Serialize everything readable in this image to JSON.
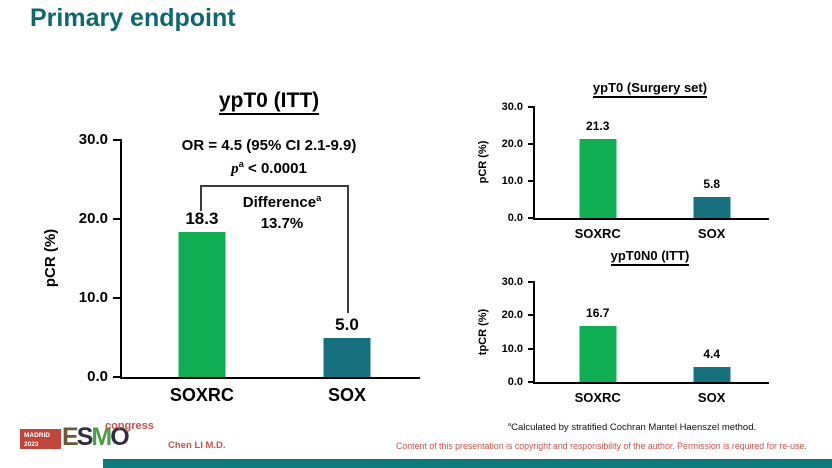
{
  "slide": {
    "title": "Primary endpoint",
    "credit": "Chen LI M.D.",
    "copyright": "Content of this presentation is copyright and responsibility of the author. Permission is required for re-use.",
    "footnote_sup": "a",
    "footnote_text": "Calculated by stratified Cochran Mantel Haenszel method."
  },
  "logo": {
    "city": "MADRID",
    "year": "2023",
    "letters": [
      "E",
      "S",
      "M",
      "O"
    ],
    "event": "congress"
  },
  "annotation": {
    "or_text": "OR = 4.5 (95% CI 2.1-9.9)",
    "p_italic": "p",
    "p_sup": "a",
    "p_rest": " < 0.0001",
    "difference_label": "Difference",
    "difference_sup": "a",
    "difference_value": "13.7%"
  },
  "colors": {
    "title_teal": "#0E696E",
    "bar_green": "#0FAE53",
    "bar_teal": "#17707E",
    "red_text": "#C4554D",
    "bottom_bar": "#0D7B7E"
  },
  "chart_data": [
    {
      "type": "bar",
      "title": "ypT0 (ITT)",
      "ylabel": "pCR (%)",
      "categories": [
        "SOXRC",
        "SOX"
      ],
      "values": [
        18.3,
        5.0
      ],
      "value_labels": [
        "18.3",
        "5.0"
      ],
      "ylim": [
        0,
        30
      ],
      "yticks": [
        0,
        10,
        20,
        30
      ],
      "ytick_labels": [
        "0.0",
        "10.0",
        "20.0",
        "30.0"
      ],
      "bar_colors": [
        "#0FAE53",
        "#17707E"
      ],
      "grid": false,
      "annotations": [
        "OR = 4.5 (95% CI 2.1-9.9)",
        "pᵃ < 0.0001",
        "Differenceᵃ 13.7%"
      ]
    },
    {
      "type": "bar",
      "title": "ypT0 (Surgery set)",
      "ylabel": "pCR (%)",
      "categories": [
        "SOXRC",
        "SOX"
      ],
      "values": [
        21.3,
        5.8
      ],
      "value_labels": [
        "21.3",
        "5.8"
      ],
      "ylim": [
        0,
        30
      ],
      "yticks": [
        0,
        10,
        20,
        30
      ],
      "ytick_labels": [
        "0.0",
        "10.0",
        "20.0",
        "30.0"
      ],
      "bar_colors": [
        "#0FAE53",
        "#17707E"
      ],
      "grid": false
    },
    {
      "type": "bar",
      "title": "ypT0N0 (ITT)",
      "ylabel": "tpCR (%)",
      "categories": [
        "SOXRC",
        "SOX"
      ],
      "values": [
        16.7,
        4.4
      ],
      "value_labels": [
        "16.7",
        "4.4"
      ],
      "ylim": [
        0,
        30
      ],
      "yticks": [
        0,
        10,
        20,
        30
      ],
      "ytick_labels": [
        "0.0",
        "10.0",
        "20.0",
        "30.0"
      ],
      "bar_colors": [
        "#0FAE53",
        "#17707E"
      ],
      "grid": false
    }
  ]
}
